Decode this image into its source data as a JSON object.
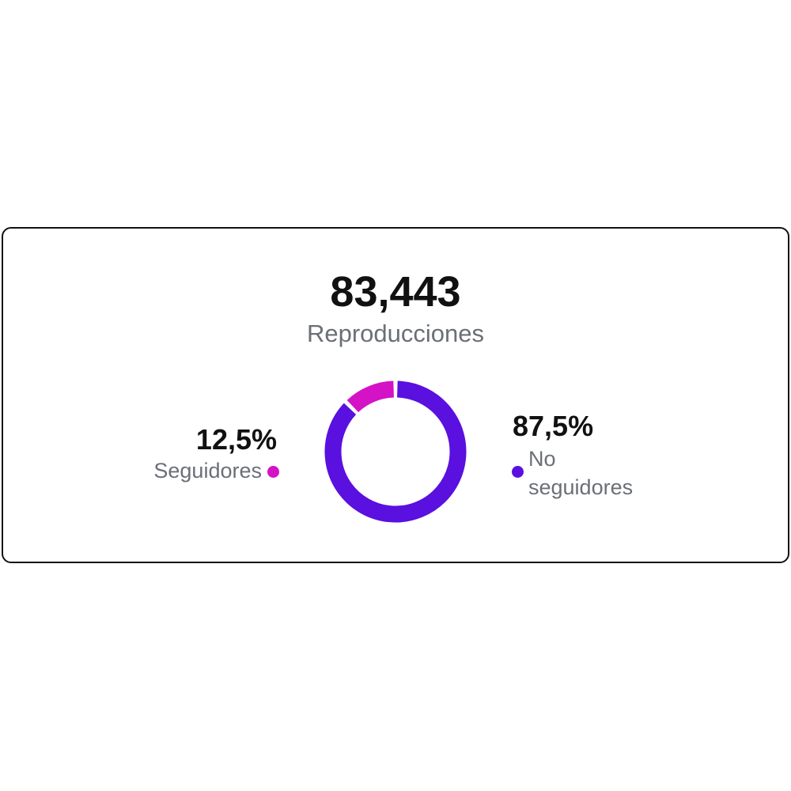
{
  "chart_data": {
    "type": "donut",
    "title": "83,443",
    "subtitle": "Reproducciones",
    "categories": [
      "Seguidores",
      "No seguidores"
    ],
    "values": [
      12.5,
      87.5
    ],
    "value_labels": [
      "12,5%",
      "87,5%"
    ],
    "colors": [
      "#d412c6",
      "#5a10df"
    ]
  }
}
